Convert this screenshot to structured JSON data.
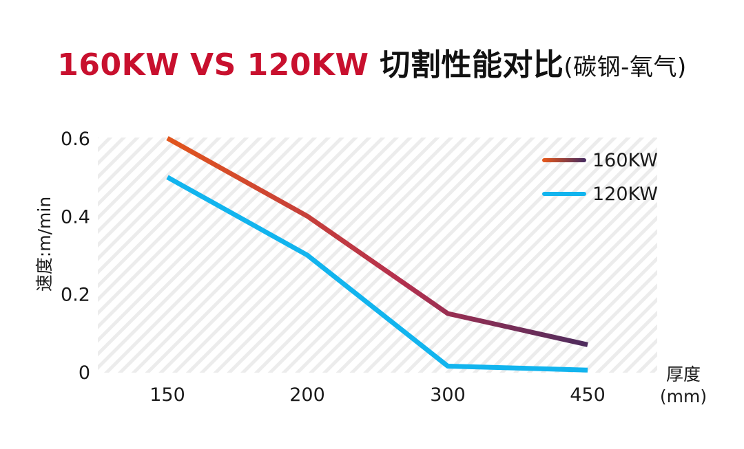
{
  "header": {
    "title_main": "160KW VS 120KW",
    "title_sub": "切割性能对比",
    "title_paren": "(碳钢-氧气)"
  },
  "colors": {
    "title_red": "#c8102e",
    "series_160_start": "#e2561c",
    "series_160_mid": "#b4304e",
    "series_160_end": "#4a2c5e",
    "series_120": "#12b4ee"
  },
  "chart_data": {
    "type": "line",
    "categories": [
      "150",
      "200",
      "300",
      "450"
    ],
    "series": [
      {
        "name": "160KW",
        "values": [
          0.6,
          0.4,
          0.15,
          0.07
        ]
      },
      {
        "name": "120KW",
        "values": [
          0.5,
          0.3,
          0.015,
          0.005
        ]
      }
    ],
    "ylabel": "速度:m/min",
    "xlabel": [
      "厚度",
      "(mm)"
    ],
    "ylim": [
      0,
      0.6
    ],
    "yticks": [
      "0",
      "0.2",
      "0.4",
      "0.6"
    ],
    "legend_position": "top-right",
    "grid": "diagonal-hatch"
  }
}
